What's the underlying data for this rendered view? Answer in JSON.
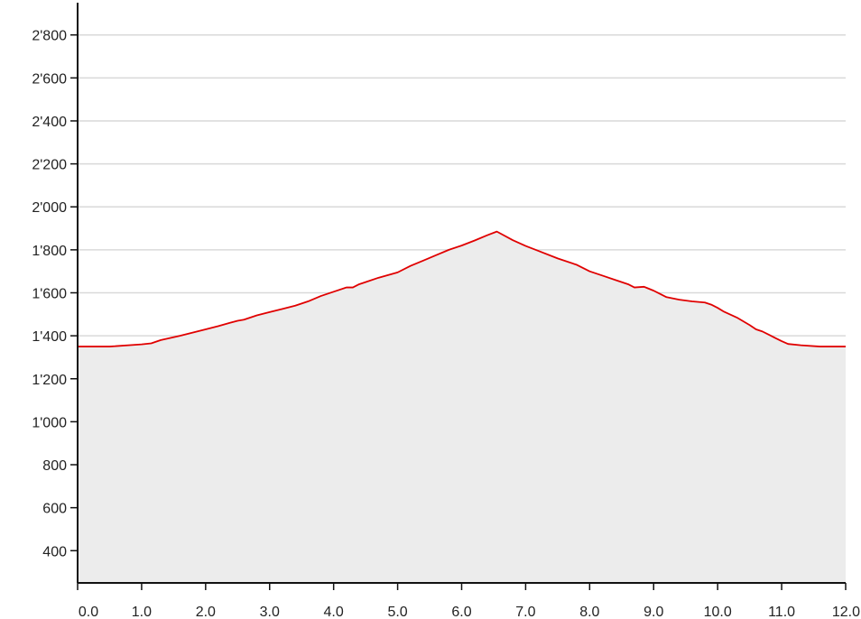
{
  "chart_data": {
    "type": "area",
    "title": "",
    "xlabel": "",
    "ylabel": "",
    "xlim": [
      0,
      12
    ],
    "ylim": [
      250,
      2950
    ],
    "grid": true,
    "x_ticks": [
      0,
      1,
      2,
      3,
      4,
      5,
      6,
      7,
      8,
      9,
      10,
      11,
      12
    ],
    "x_tick_labels": [
      "0.0",
      "1.0",
      "2.0",
      "3.0",
      "4.0",
      "5.0",
      "6.0",
      "7.0",
      "8.0",
      "9.0",
      "10.0",
      "11.0",
      "12.0"
    ],
    "y_ticks": [
      400,
      600,
      800,
      1000,
      1200,
      1400,
      1600,
      1800,
      2000,
      2200,
      2400,
      2600,
      2800
    ],
    "y_tick_labels": [
      "400",
      "600",
      "800",
      "1'000",
      "1'200",
      "1'400",
      "1'600",
      "1'800",
      "2'000",
      "2'200",
      "2'400",
      "2'600",
      "2'800"
    ],
    "colors": {
      "line": "#e00000",
      "fill": "#ececec",
      "grid": "#d9d9d9",
      "axis": "#111111"
    },
    "series": [
      {
        "x": [
          0.0,
          0.5,
          1.0,
          1.15,
          1.3,
          1.6,
          2.0,
          2.2,
          2.4,
          2.5,
          2.6,
          2.8,
          3.0,
          3.2,
          3.4,
          3.5,
          3.6,
          3.8,
          4.0,
          4.2,
          4.3,
          4.4,
          4.5,
          4.7,
          5.0,
          5.2,
          5.4,
          5.6,
          5.8,
          6.0,
          6.2,
          6.4,
          6.55,
          6.8,
          7.0,
          7.2,
          7.5,
          7.8,
          8.0,
          8.2,
          8.4,
          8.6,
          8.7,
          8.85,
          8.9,
          9.0,
          9.1,
          9.2,
          9.4,
          9.6,
          9.8,
          9.9,
          10.0,
          10.1,
          10.3,
          10.5,
          10.6,
          10.7,
          10.8,
          10.9,
          11.0,
          11.1,
          11.3,
          11.6,
          12.0
        ],
        "y": [
          1350,
          1350,
          1360,
          1365,
          1380,
          1400,
          1430,
          1445,
          1462,
          1470,
          1475,
          1495,
          1510,
          1525,
          1540,
          1550,
          1560,
          1585,
          1605,
          1625,
          1625,
          1640,
          1650,
          1670,
          1695,
          1725,
          1750,
          1775,
          1800,
          1820,
          1843,
          1868,
          1885,
          1845,
          1818,
          1795,
          1760,
          1730,
          1700,
          1680,
          1660,
          1640,
          1625,
          1628,
          1622,
          1610,
          1595,
          1580,
          1568,
          1560,
          1555,
          1545,
          1530,
          1512,
          1485,
          1450,
          1430,
          1420,
          1405,
          1390,
          1375,
          1362,
          1356,
          1350,
          1350
        ]
      }
    ]
  }
}
